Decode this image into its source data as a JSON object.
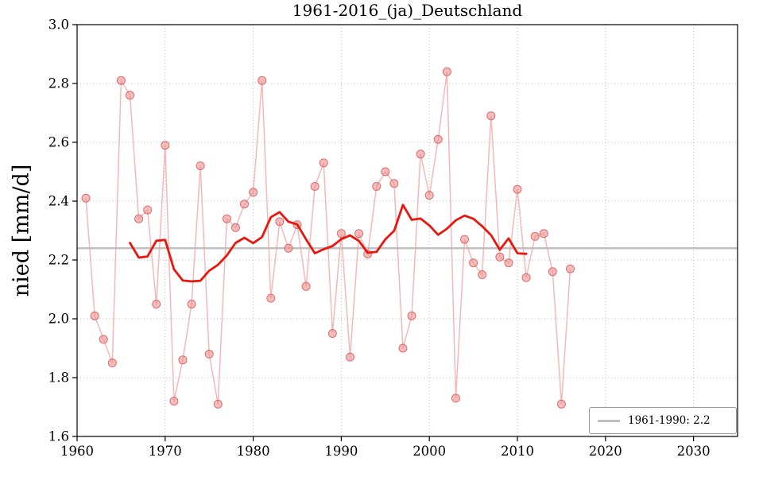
{
  "chart_data": {
    "type": "line",
    "title": "1961-2016_(ja)_Deutschland",
    "xlabel": "",
    "ylabel": "nied [mm/d]",
    "xlim": [
      1960,
      2035
    ],
    "ylim": [
      1.6,
      3.0
    ],
    "xticks": [
      1960,
      1970,
      1980,
      1990,
      2000,
      2010,
      2020,
      2030
    ],
    "yticks": [
      1.6,
      1.8,
      2.0,
      2.2,
      2.4,
      2.6,
      2.8,
      3.0
    ],
    "grid": true,
    "grid_style": "dotted",
    "legend_position": "lower right",
    "series": [
      {
        "name": "annual-precipitation",
        "marker": "circle",
        "line_color": "#f2a0a0",
        "marker_fill": "#ee8f8f",
        "marker_edge": "#d96060",
        "x": [
          1961,
          1962,
          1963,
          1964,
          1965,
          1966,
          1967,
          1968,
          1969,
          1970,
          1971,
          1972,
          1973,
          1974,
          1975,
          1976,
          1977,
          1978,
          1979,
          1980,
          1981,
          1982,
          1983,
          1984,
          1985,
          1986,
          1987,
          1988,
          1989,
          1990,
          1991,
          1992,
          1993,
          1994,
          1995,
          1996,
          1997,
          1998,
          1999,
          2000,
          2001,
          2002,
          2003,
          2004,
          2005,
          2006,
          2007,
          2008,
          2009,
          2010,
          2011,
          2012,
          2013,
          2014,
          2015,
          2016
        ],
        "values": [
          2.41,
          2.01,
          1.93,
          1.85,
          2.81,
          2.76,
          2.34,
          2.37,
          2.05,
          2.59,
          1.72,
          1.86,
          2.05,
          2.52,
          1.88,
          1.71,
          2.34,
          2.31,
          2.39,
          2.43,
          2.81,
          2.07,
          2.33,
          2.24,
          2.32,
          2.11,
          2.45,
          2.53,
          1.95,
          2.29,
          1.87,
          2.29,
          2.22,
          2.45,
          2.5,
          2.46,
          1.9,
          2.01,
          2.56,
          2.42,
          2.61,
          2.84,
          1.73,
          2.27,
          2.19,
          2.15,
          2.69,
          2.21,
          2.19,
          2.44,
          2.14,
          2.28,
          2.29,
          2.16,
          1.71,
          2.17
        ]
      },
      {
        "name": "running-mean-11yr",
        "derived_from": "annual-precipitation",
        "window": 11,
        "color": "#e8160c"
      },
      {
        "name": "reference-1961-1990",
        "type": "hline",
        "value": 2.24,
        "label": "1961-1990: 2.2",
        "color": "#c0c0c0"
      }
    ]
  }
}
